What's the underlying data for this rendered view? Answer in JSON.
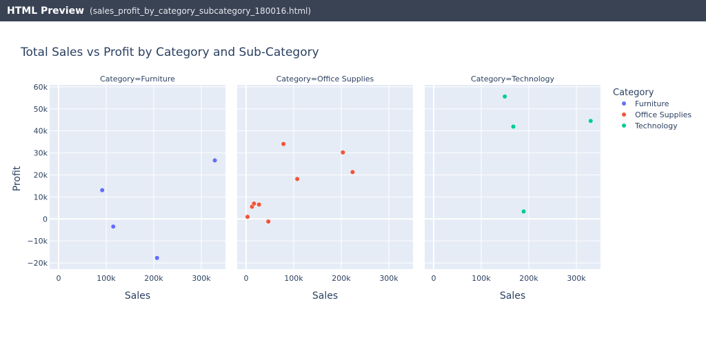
{
  "window": {
    "app_title": "HTML Preview",
    "file_name": "(sales_profit_by_category_subcategory_180016.html)"
  },
  "chart_data": {
    "type": "scatter",
    "title": "Total Sales vs Profit by Category and Sub-Category",
    "xlabel": "Sales",
    "ylabel": "Profit",
    "xlim": [
      -18800,
      350700
    ],
    "ylim": [
      -22800,
      60900
    ],
    "x_ticks": [
      0,
      100000,
      200000,
      300000
    ],
    "x_tick_labels": [
      "0",
      "100k",
      "200k",
      "300k"
    ],
    "y_ticks": [
      60000,
      50000,
      40000,
      30000,
      20000,
      10000,
      0,
      -10000,
      -20000
    ],
    "y_tick_labels": [
      "60k",
      "50k",
      "40k",
      "30k",
      "20k",
      "10k",
      "0",
      "−10k",
      "−20k"
    ],
    "grid": true,
    "legend": {
      "title": "Category",
      "placement": "right"
    },
    "facets": [
      {
        "title": "Category=Furniture",
        "series": "Furniture",
        "color": "#636efa",
        "points": [
          [
            91700,
            13060
          ],
          [
            114900,
            -3470
          ],
          [
            206900,
            -17730
          ],
          [
            328400,
            26590
          ]
        ]
      },
      {
        "title": "Category=Office Supplies",
        "series": "Office Supplies",
        "color": "#ef553b",
        "points": [
          [
            3000,
            950
          ],
          [
            12500,
            5550
          ],
          [
            16500,
            6960
          ],
          [
            27100,
            6530
          ],
          [
            46700,
            -1190
          ],
          [
            78500,
            34050
          ],
          [
            107500,
            18140
          ],
          [
            203400,
            30220
          ],
          [
            223800,
            21280
          ]
        ]
      },
      {
        "title": "Category=Technology",
        "series": "Technology",
        "color": "#00cc96",
        "points": [
          [
            149500,
            55620
          ],
          [
            167400,
            41940
          ],
          [
            189200,
            3380
          ],
          [
            330000,
            44520
          ]
        ]
      }
    ]
  }
}
